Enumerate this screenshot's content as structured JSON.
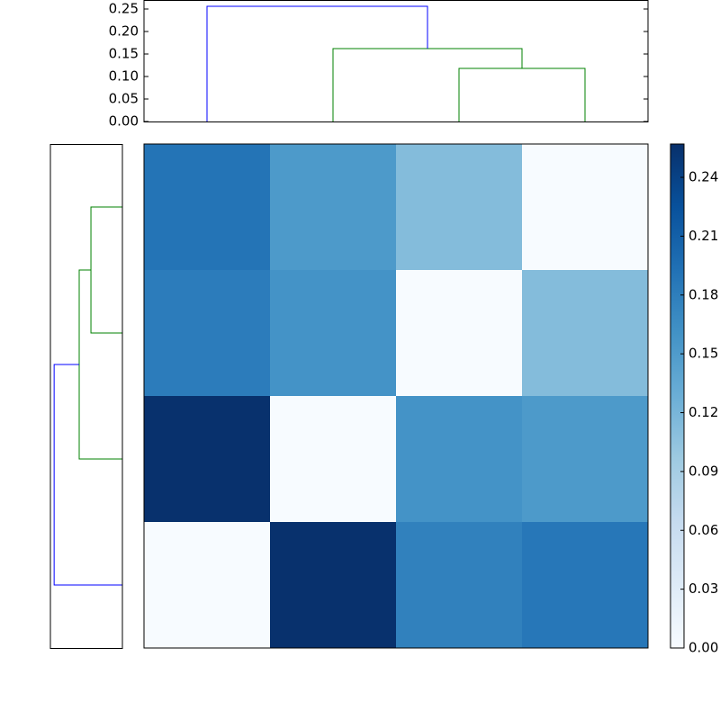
{
  "chart_data": [
    {
      "type": "dendrogram",
      "orientation": "top",
      "links": [
        {
          "x": [
            25,
            25,
            35,
            35
          ],
          "y": [
            0,
            0.118,
            0.118,
            0
          ],
          "color": "#008000"
        },
        {
          "x": [
            15,
            15,
            30,
            30
          ],
          "y": [
            0,
            0.162,
            0.162,
            0.118
          ],
          "color": "#008000"
        },
        {
          "x": [
            5,
            5,
            22.5,
            22.5
          ],
          "y": [
            0,
            0.256,
            0.256,
            0.162
          ],
          "color": "#0000ff"
        }
      ],
      "xlim": [
        0,
        40
      ],
      "ylim": [
        0,
        0.27
      ],
      "yticks": [
        {
          "value": 0,
          "label": "0.00"
        },
        {
          "value": 0.05,
          "label": "0.05"
        },
        {
          "value": 0.1,
          "label": "0.10"
        },
        {
          "value": 0.15,
          "label": "0.15"
        },
        {
          "value": 0.2,
          "label": "0.20"
        },
        {
          "value": 0.25,
          "label": "0.25"
        }
      ]
    },
    {
      "type": "dendrogram",
      "orientation": "left",
      "links": [
        {
          "y": [
            5,
            5,
            15,
            15
          ],
          "x": [
            0,
            0.118,
            0.118,
            0
          ],
          "color": "#008000"
        },
        {
          "y": [
            10,
            10,
            25,
            25
          ],
          "x": [
            0.118,
            0.162,
            0.162,
            0
          ],
          "color": "#008000"
        },
        {
          "y": [
            17.5,
            17.5,
            35,
            35
          ],
          "x": [
            0.162,
            0.256,
            0.256,
            0
          ],
          "color": "#0000ff"
        }
      ],
      "xlim": [
        0.27,
        0
      ],
      "ylim": [
        0,
        40
      ]
    },
    {
      "type": "heatmap",
      "values": [
        [
          0.19,
          0.152,
          0.113,
          0
        ],
        [
          0.182,
          0.159,
          0,
          0.113
        ],
        [
          0.256,
          0,
          0.159,
          0.152
        ],
        [
          0,
          0.256,
          0.177,
          0.187
        ]
      ],
      "colormap": [
        "#f7fbff",
        "#deebf7",
        "#c6dbef",
        "#9ecae1",
        "#6baed6",
        "#4292c6",
        "#2171b5",
        "#08519c",
        "#08306b"
      ],
      "vlim": [
        0,
        0.257
      ],
      "colorbar_ticks": [
        {
          "value": 0,
          "label": "0.00"
        },
        {
          "value": 0.03,
          "label": "0.03"
        },
        {
          "value": 0.06,
          "label": "0.06"
        },
        {
          "value": 0.09,
          "label": "0.09"
        },
        {
          "value": 0.12,
          "label": "0.12"
        },
        {
          "value": 0.15,
          "label": "0.15"
        },
        {
          "value": 0.18,
          "label": "0.18"
        },
        {
          "value": 0.21,
          "label": "0.21"
        },
        {
          "value": 0.24,
          "label": "0.24"
        }
      ]
    }
  ]
}
